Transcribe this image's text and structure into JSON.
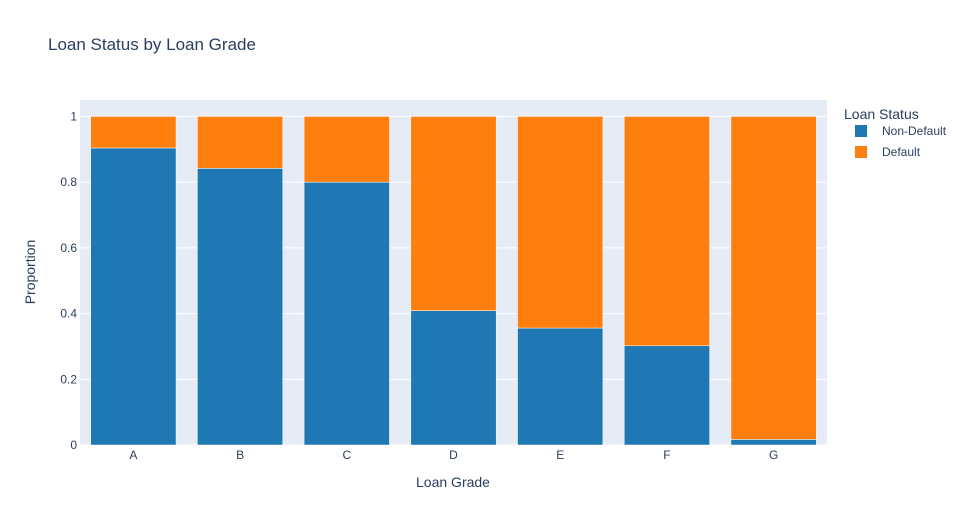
{
  "chart_data": {
    "type": "bar",
    "stacked": true,
    "title": "Loan Status by Loan Grade",
    "xlabel": "Loan Grade",
    "ylabel": "Proportion",
    "ylim": [
      0,
      1.05
    ],
    "yticks": [
      0,
      0.2,
      0.4,
      0.6,
      0.8,
      1
    ],
    "ytick_labels": [
      "0",
      "0.2",
      "0.4",
      "0.6",
      "0.8",
      "1"
    ],
    "categories": [
      "A",
      "B",
      "C",
      "D",
      "E",
      "F",
      "G"
    ],
    "series": [
      {
        "name": "Non-Default",
        "color": "#1f77b4",
        "values": [
          0.904,
          0.842,
          0.8,
          0.409,
          0.356,
          0.302,
          0.017
        ]
      },
      {
        "name": "Default",
        "color": "#ff7f0e",
        "values": [
          0.096,
          0.158,
          0.2,
          0.591,
          0.644,
          0.698,
          0.983
        ]
      }
    ],
    "legend": {
      "title": "Loan Status",
      "position": "right"
    },
    "grid": true,
    "plot_bg": "#e5ecf6"
  }
}
